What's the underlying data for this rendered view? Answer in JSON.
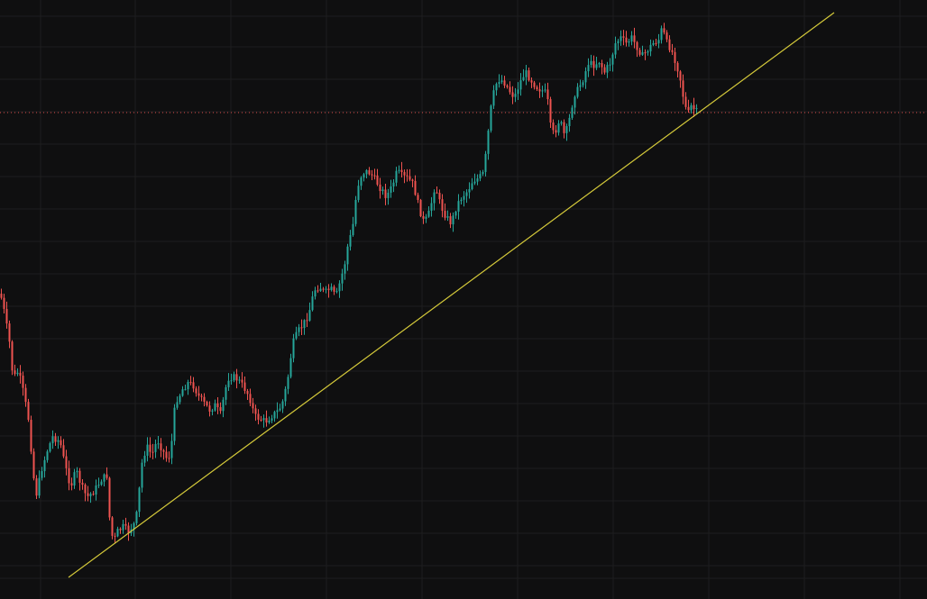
{
  "chart_data": {
    "type": "candlestick",
    "title": "",
    "xlabel": "",
    "ylabel": "",
    "grid": true,
    "colors": {
      "background": "#0f0f10",
      "grid": "#1d1d1f",
      "up": "#26a69a",
      "down": "#ef5350",
      "trendline": "#d4c93a",
      "price_line": "#ef5350"
    },
    "close_path": [
      [
        0,
        326
      ],
      [
        4,
        345
      ],
      [
        10,
        380
      ],
      [
        14,
        420
      ],
      [
        20,
        412
      ],
      [
        26,
        438
      ],
      [
        32,
        470
      ],
      [
        36,
        525
      ],
      [
        40,
        548
      ],
      [
        46,
        520
      ],
      [
        52,
        500
      ],
      [
        58,
        485
      ],
      [
        66,
        490
      ],
      [
        72,
        518
      ],
      [
        78,
        540
      ],
      [
        84,
        522
      ],
      [
        90,
        540
      ],
      [
        96,
        552
      ],
      [
        104,
        545
      ],
      [
        112,
        532
      ],
      [
        118,
        528
      ],
      [
        122,
        590
      ],
      [
        126,
        600
      ],
      [
        130,
        590
      ],
      [
        136,
        585
      ],
      [
        142,
        590
      ],
      [
        148,
        582
      ],
      [
        152,
        568
      ],
      [
        156,
        518
      ],
      [
        162,
        495
      ],
      [
        168,
        505
      ],
      [
        174,
        488
      ],
      [
        180,
        500
      ],
      [
        186,
        512
      ],
      [
        190,
        490
      ],
      [
        194,
        445
      ],
      [
        198,
        440
      ],
      [
        202,
        432
      ],
      [
        208,
        425
      ],
      [
        214,
        428
      ],
      [
        220,
        440
      ],
      [
        226,
        448
      ],
      [
        232,
        455
      ],
      [
        238,
        450
      ],
      [
        244,
        460
      ],
      [
        248,
        440
      ],
      [
        252,
        420
      ],
      [
        258,
        418
      ],
      [
        264,
        422
      ],
      [
        270,
        430
      ],
      [
        276,
        440
      ],
      [
        282,
        462
      ],
      [
        288,
        465
      ],
      [
        294,
        468
      ],
      [
        300,
        462
      ],
      [
        306,
        458
      ],
      [
        312,
        450
      ],
      [
        318,
        425
      ],
      [
        324,
        382
      ],
      [
        330,
        368
      ],
      [
        336,
        360
      ],
      [
        342,
        348
      ],
      [
        348,
        322
      ],
      [
        354,
        318
      ],
      [
        360,
        325
      ],
      [
        366,
        320
      ],
      [
        372,
        330
      ],
      [
        378,
        308
      ],
      [
        382,
        292
      ],
      [
        386,
        268
      ],
      [
        390,
        258
      ],
      [
        394,
        222
      ],
      [
        398,
        198
      ],
      [
        404,
        190
      ],
      [
        410,
        192
      ],
      [
        416,
        200
      ],
      [
        422,
        210
      ],
      [
        428,
        218
      ],
      [
        434,
        208
      ],
      [
        440,
        190
      ],
      [
        446,
        196
      ],
      [
        452,
        198
      ],
      [
        458,
        205
      ],
      [
        464,
        230
      ],
      [
        470,
        248
      ],
      [
        476,
        235
      ],
      [
        482,
        205
      ],
      [
        488,
        228
      ],
      [
        494,
        240
      ],
      [
        500,
        248
      ],
      [
        506,
        228
      ],
      [
        512,
        218
      ],
      [
        518,
        212
      ],
      [
        524,
        200
      ],
      [
        530,
        198
      ],
      [
        536,
        192
      ],
      [
        540,
        155
      ],
      [
        544,
        120
      ],
      [
        548,
        98
      ],
      [
        552,
        88
      ],
      [
        558,
        90
      ],
      [
        564,
        100
      ],
      [
        570,
        108
      ],
      [
        576,
        92
      ],
      [
        582,
        80
      ],
      [
        588,
        88
      ],
      [
        594,
        96
      ],
      [
        600,
        100
      ],
      [
        606,
        104
      ],
      [
        610,
        140
      ],
      [
        614,
        150
      ],
      [
        620,
        132
      ],
      [
        626,
        152
      ],
      [
        632,
        128
      ],
      [
        636,
        105
      ],
      [
        640,
        100
      ],
      [
        646,
        88
      ],
      [
        652,
        70
      ],
      [
        658,
        72
      ],
      [
        664,
        68
      ],
      [
        670,
        80
      ],
      [
        676,
        70
      ],
      [
        682,
        48
      ],
      [
        688,
        42
      ],
      [
        694,
        48
      ],
      [
        700,
        42
      ],
      [
        706,
        52
      ],
      [
        712,
        62
      ],
      [
        718,
        55
      ],
      [
        724,
        48
      ],
      [
        730,
        44
      ],
      [
        734,
        30
      ],
      [
        738,
        46
      ],
      [
        742,
        52
      ],
      [
        746,
        60
      ],
      [
        750,
        72
      ],
      [
        754,
        88
      ],
      [
        758,
        112
      ],
      [
        762,
        128
      ],
      [
        766,
        118
      ],
      [
        770,
        122
      ],
      [
        774,
        126
      ]
    ],
    "price_line_y": 125,
    "trendline": {
      "x1": 76,
      "y1": 641,
      "x2": 925,
      "y2": 14
    }
  }
}
